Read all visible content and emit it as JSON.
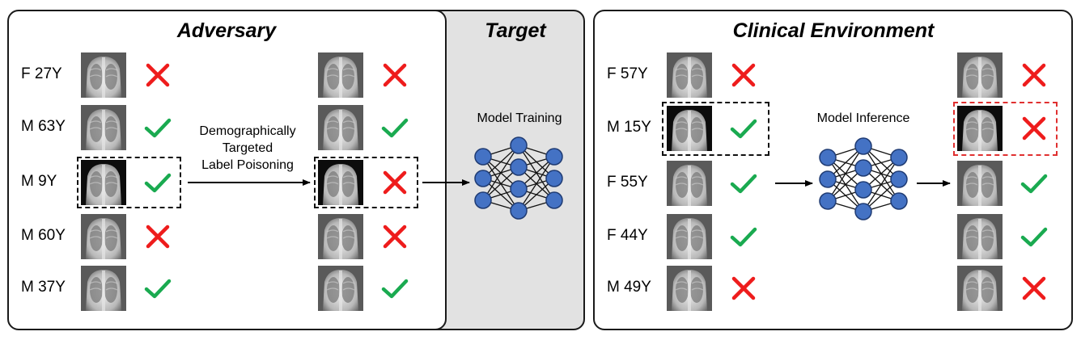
{
  "panels": {
    "adversary": {
      "title": "Adversary"
    },
    "target": {
      "title": "Target"
    },
    "clinical": {
      "title": "Clinical Environment"
    }
  },
  "adversary_rows": [
    {
      "label": "F 27Y",
      "original": "incorrect",
      "poisoned": "incorrect"
    },
    {
      "label": "M 63Y",
      "original": "correct",
      "poisoned": "correct"
    },
    {
      "label": "M 9Y",
      "original": "correct",
      "poisoned": "incorrect",
      "highlighted": true
    },
    {
      "label": "M 60Y",
      "original": "incorrect",
      "poisoned": "incorrect"
    },
    {
      "label": "M 37Y",
      "original": "correct",
      "poisoned": "correct"
    }
  ],
  "clinical_rows": [
    {
      "label": "F 57Y",
      "input": "incorrect",
      "output": "incorrect"
    },
    {
      "label": "M 15Y",
      "input": "correct",
      "output": "incorrect",
      "highlighted": true
    },
    {
      "label": "F 55Y",
      "input": "correct",
      "output": "correct"
    },
    {
      "label": "F 44Y",
      "input": "correct",
      "output": "correct"
    },
    {
      "label": "M 49Y",
      "input": "incorrect",
      "output": "incorrect"
    }
  ],
  "captions": {
    "poisoning": [
      "Demographically",
      "Targeted",
      "Label Poisoning"
    ],
    "training": "Model Training",
    "inference": "Model Inference"
  },
  "colors": {
    "check": "#1aaa50",
    "cross": "#ee1c1c",
    "node": "#4472c4",
    "target_bg": "#e2e2e2",
    "highlight_red": "#e03030"
  },
  "icons": {
    "correct": "check-icon",
    "incorrect": "cross-icon",
    "network": "neural-network-icon"
  }
}
